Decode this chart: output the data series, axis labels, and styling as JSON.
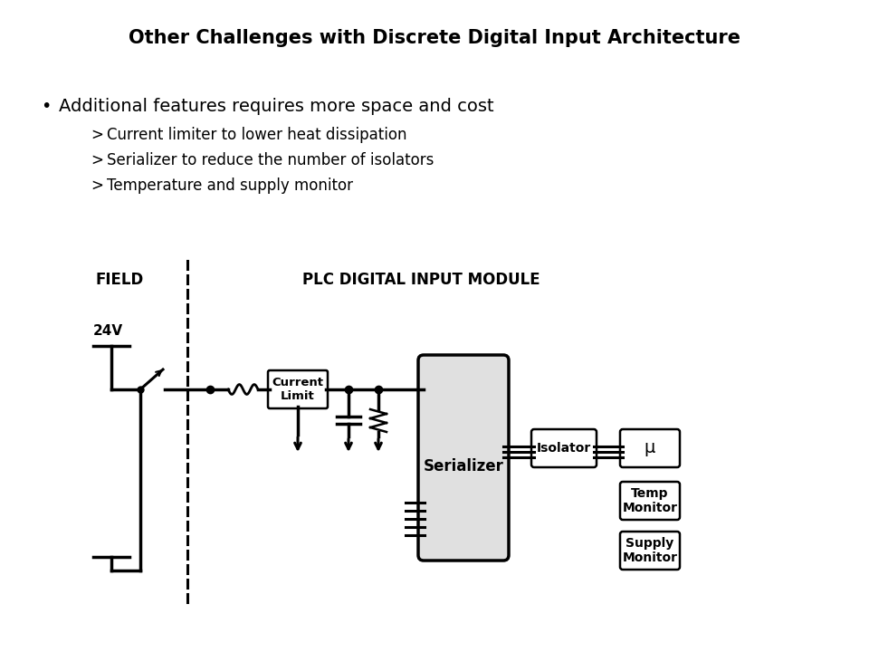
{
  "title": "Other Challenges with Discrete Digital Input Architecture",
  "bullet_main": "Additional features requires more space and cost",
  "sub_bullets": [
    "Current limiter to lower heat dissipation",
    "Serializer to reduce the number of isolators",
    "Temperature and supply monitor"
  ],
  "field_label": "FIELD",
  "plc_label": "PLC DIGITAL INPUT MODULE",
  "voltage_label": "24V",
  "current_limit_label": "Current\nLimit",
  "serializer_label": "Serializer",
  "isolator_label": "Isolator",
  "mu_label": "μ",
  "temp_monitor_label": "Temp\nMonitor",
  "supply_monitor_label": "Supply\nMonitor",
  "bg_color": "#ffffff",
  "text_color": "#000000",
  "line_color": "#000000",
  "box_fill_serializer": "#e0e0e0",
  "box_fill_white": "#ffffff"
}
